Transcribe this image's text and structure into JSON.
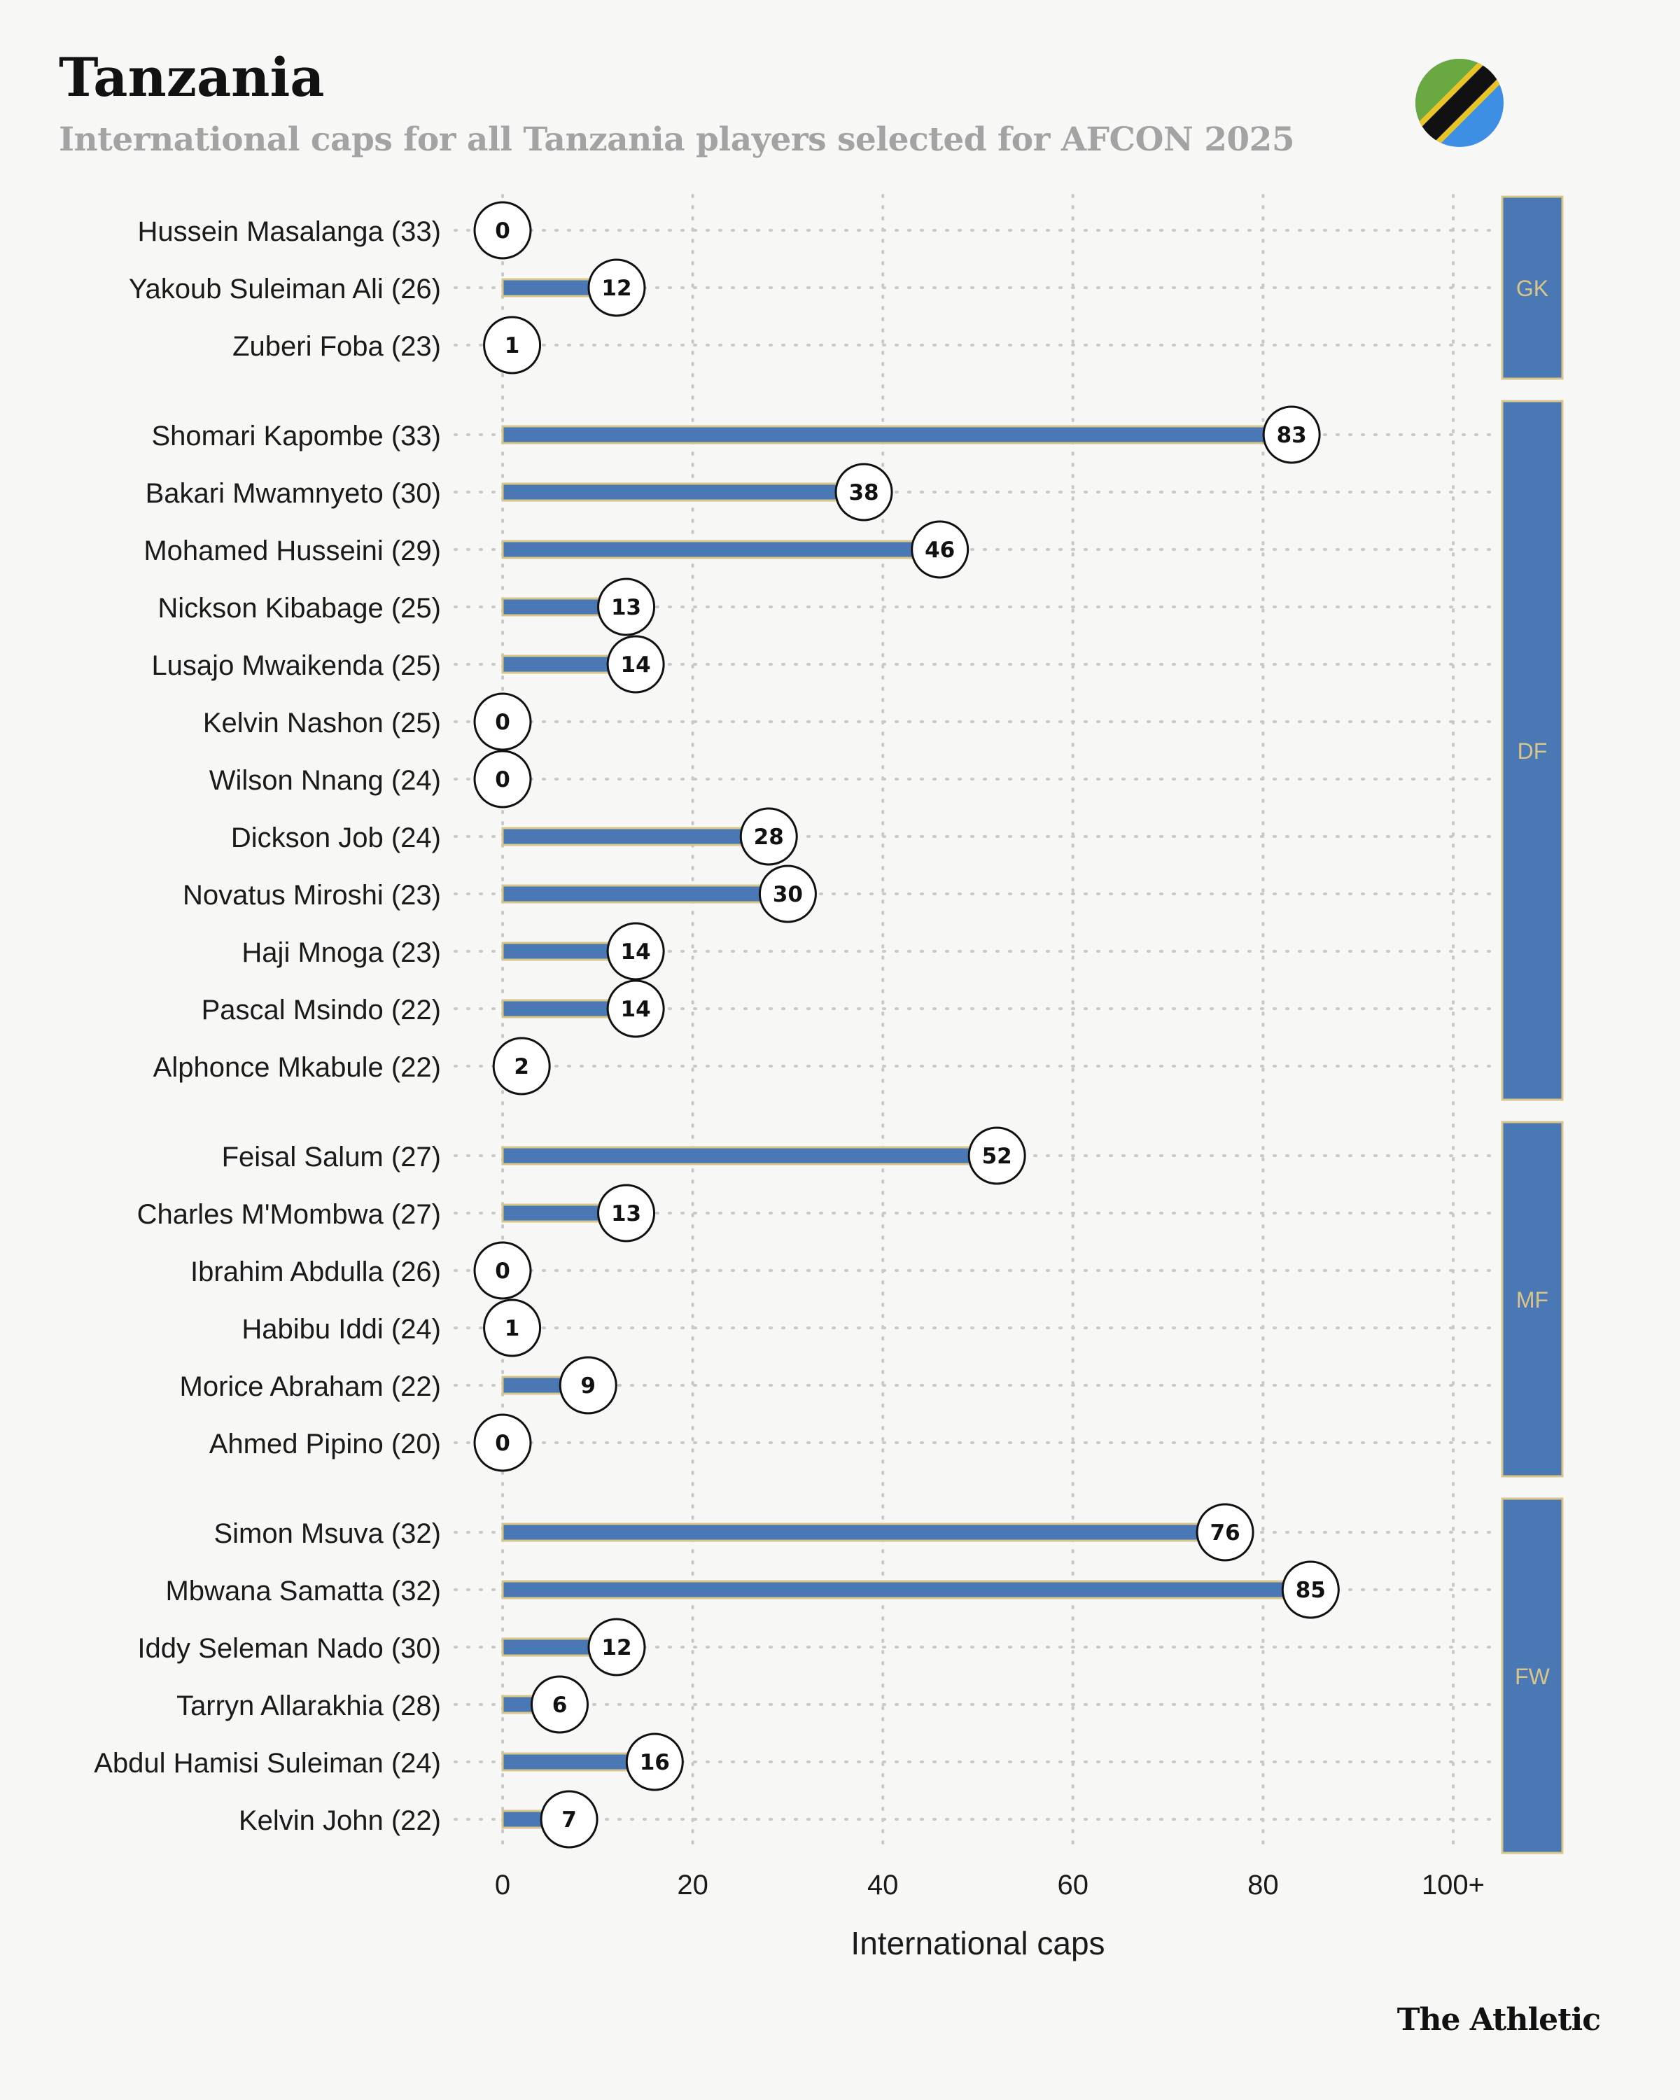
{
  "title": "Tanzania",
  "subtitle": "International caps for all Tanzania players selected for AFCON 2025",
  "brand": "The Athletic",
  "flag_icon": "tanzania-flag-icon",
  "colors": {
    "bar": "#4a78b5",
    "bar_outline": "#d9c48a",
    "position_label": "#d9c48a",
    "grid": "#c9c9c9",
    "subtitle": "#a3a3a3",
    "flag_green": "#6aa842",
    "flag_blue": "#3d8fe6",
    "flag_yellow": "#e8c32a"
  },
  "chart_data": {
    "type": "bar",
    "orientation": "horizontal",
    "title": "Tanzania",
    "subtitle": "International caps for all Tanzania players selected for AFCON 2025",
    "xlabel": "International caps",
    "ylabel": "",
    "xlim": [
      0,
      100
    ],
    "xticks": [
      0,
      20,
      40,
      60,
      80,
      100
    ],
    "xtick_labels": [
      "0",
      "20",
      "40",
      "60",
      "80",
      "100+"
    ],
    "grid": true,
    "groups": [
      {
        "position": "GK",
        "players": [
          {
            "name": "Hussein Masalanga (33)",
            "caps": 0
          },
          {
            "name": "Yakoub Suleiman Ali (26)",
            "caps": 12
          },
          {
            "name": "Zuberi Foba (23)",
            "caps": 1
          }
        ]
      },
      {
        "position": "DF",
        "players": [
          {
            "name": "Shomari Kapombe (33)",
            "caps": 83
          },
          {
            "name": "Bakari Mwamnyeto (30)",
            "caps": 38
          },
          {
            "name": "Mohamed Husseini (29)",
            "caps": 46
          },
          {
            "name": "Nickson Kibabage (25)",
            "caps": 13
          },
          {
            "name": "Lusajo Mwaikenda (25)",
            "caps": 14
          },
          {
            "name": "Kelvin Nashon (25)",
            "caps": 0
          },
          {
            "name": "Wilson Nnang (24)",
            "caps": 0
          },
          {
            "name": "Dickson Job (24)",
            "caps": 28
          },
          {
            "name": "Novatus Miroshi (23)",
            "caps": 30
          },
          {
            "name": "Haji Mnoga (23)",
            "caps": 14
          },
          {
            "name": "Pascal Msindo (22)",
            "caps": 14
          },
          {
            "name": "Alphonce Mkabule (22)",
            "caps": 2
          }
        ]
      },
      {
        "position": "MF",
        "players": [
          {
            "name": "Feisal Salum (27)",
            "caps": 52
          },
          {
            "name": "Charles M'Mombwa (27)",
            "caps": 13
          },
          {
            "name": "Ibrahim Abdulla (26)",
            "caps": 0
          },
          {
            "name": "Habibu Iddi (24)",
            "caps": 1
          },
          {
            "name": "Morice Abraham (22)",
            "caps": 9
          },
          {
            "name": "Ahmed Pipino (20)",
            "caps": 0
          }
        ]
      },
      {
        "position": "FW",
        "players": [
          {
            "name": "Simon Msuva (32)",
            "caps": 76
          },
          {
            "name": "Mbwana Samatta (32)",
            "caps": 85
          },
          {
            "name": "Iddy Seleman Nado (30)",
            "caps": 12
          },
          {
            "name": "Tarryn Allarakhia (28)",
            "caps": 6
          },
          {
            "name": "Abdul Hamisi Suleiman (24)",
            "caps": 16
          },
          {
            "name": "Kelvin John (22)",
            "caps": 7
          }
        ]
      }
    ]
  }
}
